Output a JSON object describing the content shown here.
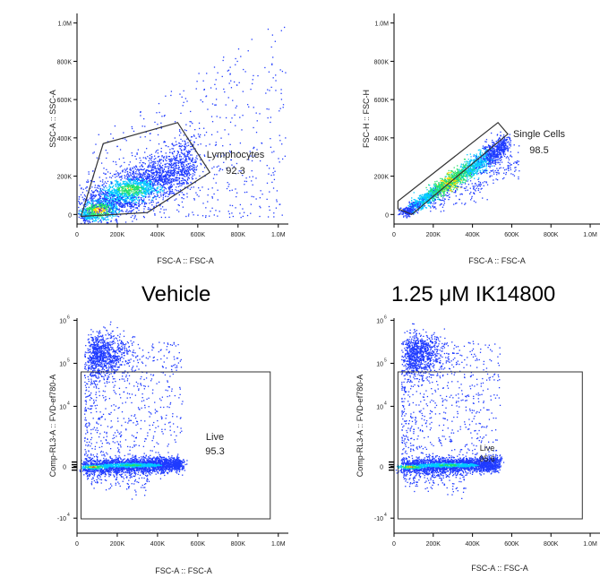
{
  "condition_labels": {
    "left": "Vehicle",
    "right": "1.25 μM IK14800"
  },
  "colors": {
    "dots": "#1f3bff",
    "dense_1": "#00c8ff",
    "dense_2": "#22e06a",
    "dense_3": "#ffd700",
    "dense_4": "#ff3b1f",
    "gate": "#333333",
    "axis": "#000000"
  },
  "chart_data": [
    {
      "type": "scatter",
      "xlabel": "FSC-A :: FSC-A",
      "ylabel": "SSC-A :: SSC-A",
      "xscale": "linear",
      "yscale": "linear",
      "xlim": [
        0,
        1050000
      ],
      "ylim": [
        -50000,
        1050000
      ],
      "xticks": [
        0,
        200000,
        400000,
        600000,
        800000,
        1000000
      ],
      "xtick_labels": [
        "0",
        "200K",
        "400K",
        "600K",
        "800K",
        "1.0M"
      ],
      "yticks": [
        0,
        200000,
        400000,
        600000,
        800000,
        1000000
      ],
      "ytick_labels": [
        "0",
        "200K",
        "400K",
        "600K",
        "800K",
        "1.0M"
      ],
      "gate": {
        "name": "Lymphocytes",
        "value": "92.3",
        "shape": "polygon",
        "points": [
          [
            20000,
            -10000
          ],
          [
            130000,
            370000
          ],
          [
            500000,
            480000
          ],
          [
            660000,
            220000
          ],
          [
            350000,
            10000
          ]
        ]
      }
    },
    {
      "type": "scatter",
      "xlabel": "FSC-A :: FSC-A",
      "ylabel": "FSC-H :: FSC-H",
      "xscale": "linear",
      "yscale": "linear",
      "xlim": [
        0,
        1050000
      ],
      "ylim": [
        -50000,
        1050000
      ],
      "xticks": [
        0,
        200000,
        400000,
        600000,
        800000,
        1000000
      ],
      "xtick_labels": [
        "0",
        "200K",
        "400K",
        "600K",
        "800K",
        "1.0M"
      ],
      "yticks": [
        0,
        200000,
        400000,
        600000,
        800000,
        1000000
      ],
      "ytick_labels": [
        "0",
        "200K",
        "400K",
        "600K",
        "800K",
        "1.0M"
      ],
      "gate": {
        "name": "Single Cells",
        "value": "98.5",
        "shape": "polygon",
        "points": [
          [
            20000,
            30000
          ],
          [
            20000,
            70000
          ],
          [
            530000,
            480000
          ],
          [
            580000,
            420000
          ],
          [
            90000,
            0
          ]
        ]
      }
    },
    {
      "type": "scatter",
      "xlabel": "FSC-A :: FSC-A",
      "ylabel": "Comp-RL3-A :: FVD-ef780-A",
      "xscale": "linear",
      "yscale": "biexponential",
      "xlim": [
        0,
        1050000
      ],
      "xticks": [
        0,
        200000,
        400000,
        600000,
        800000,
        1000000
      ],
      "xtick_labels": [
        "0",
        "200K",
        "400K",
        "600K",
        "800K",
        "1.0M"
      ],
      "ytick_labels": [
        "-10",
        "0",
        "10",
        "10",
        "10"
      ],
      "ytick_exponents": [
        "4",
        "",
        "4",
        "5",
        "6"
      ],
      "gate": {
        "name": "Live",
        "value": "95.3",
        "shape": "rectangle",
        "x_range": [
          20000,
          960000
        ],
        "y_range": [
          "-10^4 (approx.)",
          "2.5×10^4 (approx.)"
        ]
      }
    },
    {
      "type": "scatter",
      "xlabel": "FSC-A :: FSC-A",
      "ylabel": "Comp-RL3-A :: FVD-ef780-A",
      "xscale": "linear",
      "yscale": "biexponential",
      "xlim": [
        0,
        1050000
      ],
      "xticks": [
        0,
        200000,
        400000,
        600000,
        800000,
        1000000
      ],
      "xtick_labels": [
        "0",
        "200K",
        "400K",
        "600K",
        "800K",
        "1.0M"
      ],
      "ytick_labels": [
        "-10",
        "0",
        "10",
        "10",
        "10"
      ],
      "ytick_exponents": [
        "4",
        "",
        "4",
        "5",
        "6"
      ],
      "gate": {
        "name": "Live",
        "value": "95.6",
        "shape": "rectangle",
        "x_range": [
          20000,
          960000
        ],
        "y_range": [
          "-10^4 (approx.)",
          "2.5×10^4 (approx.)"
        ]
      }
    }
  ]
}
